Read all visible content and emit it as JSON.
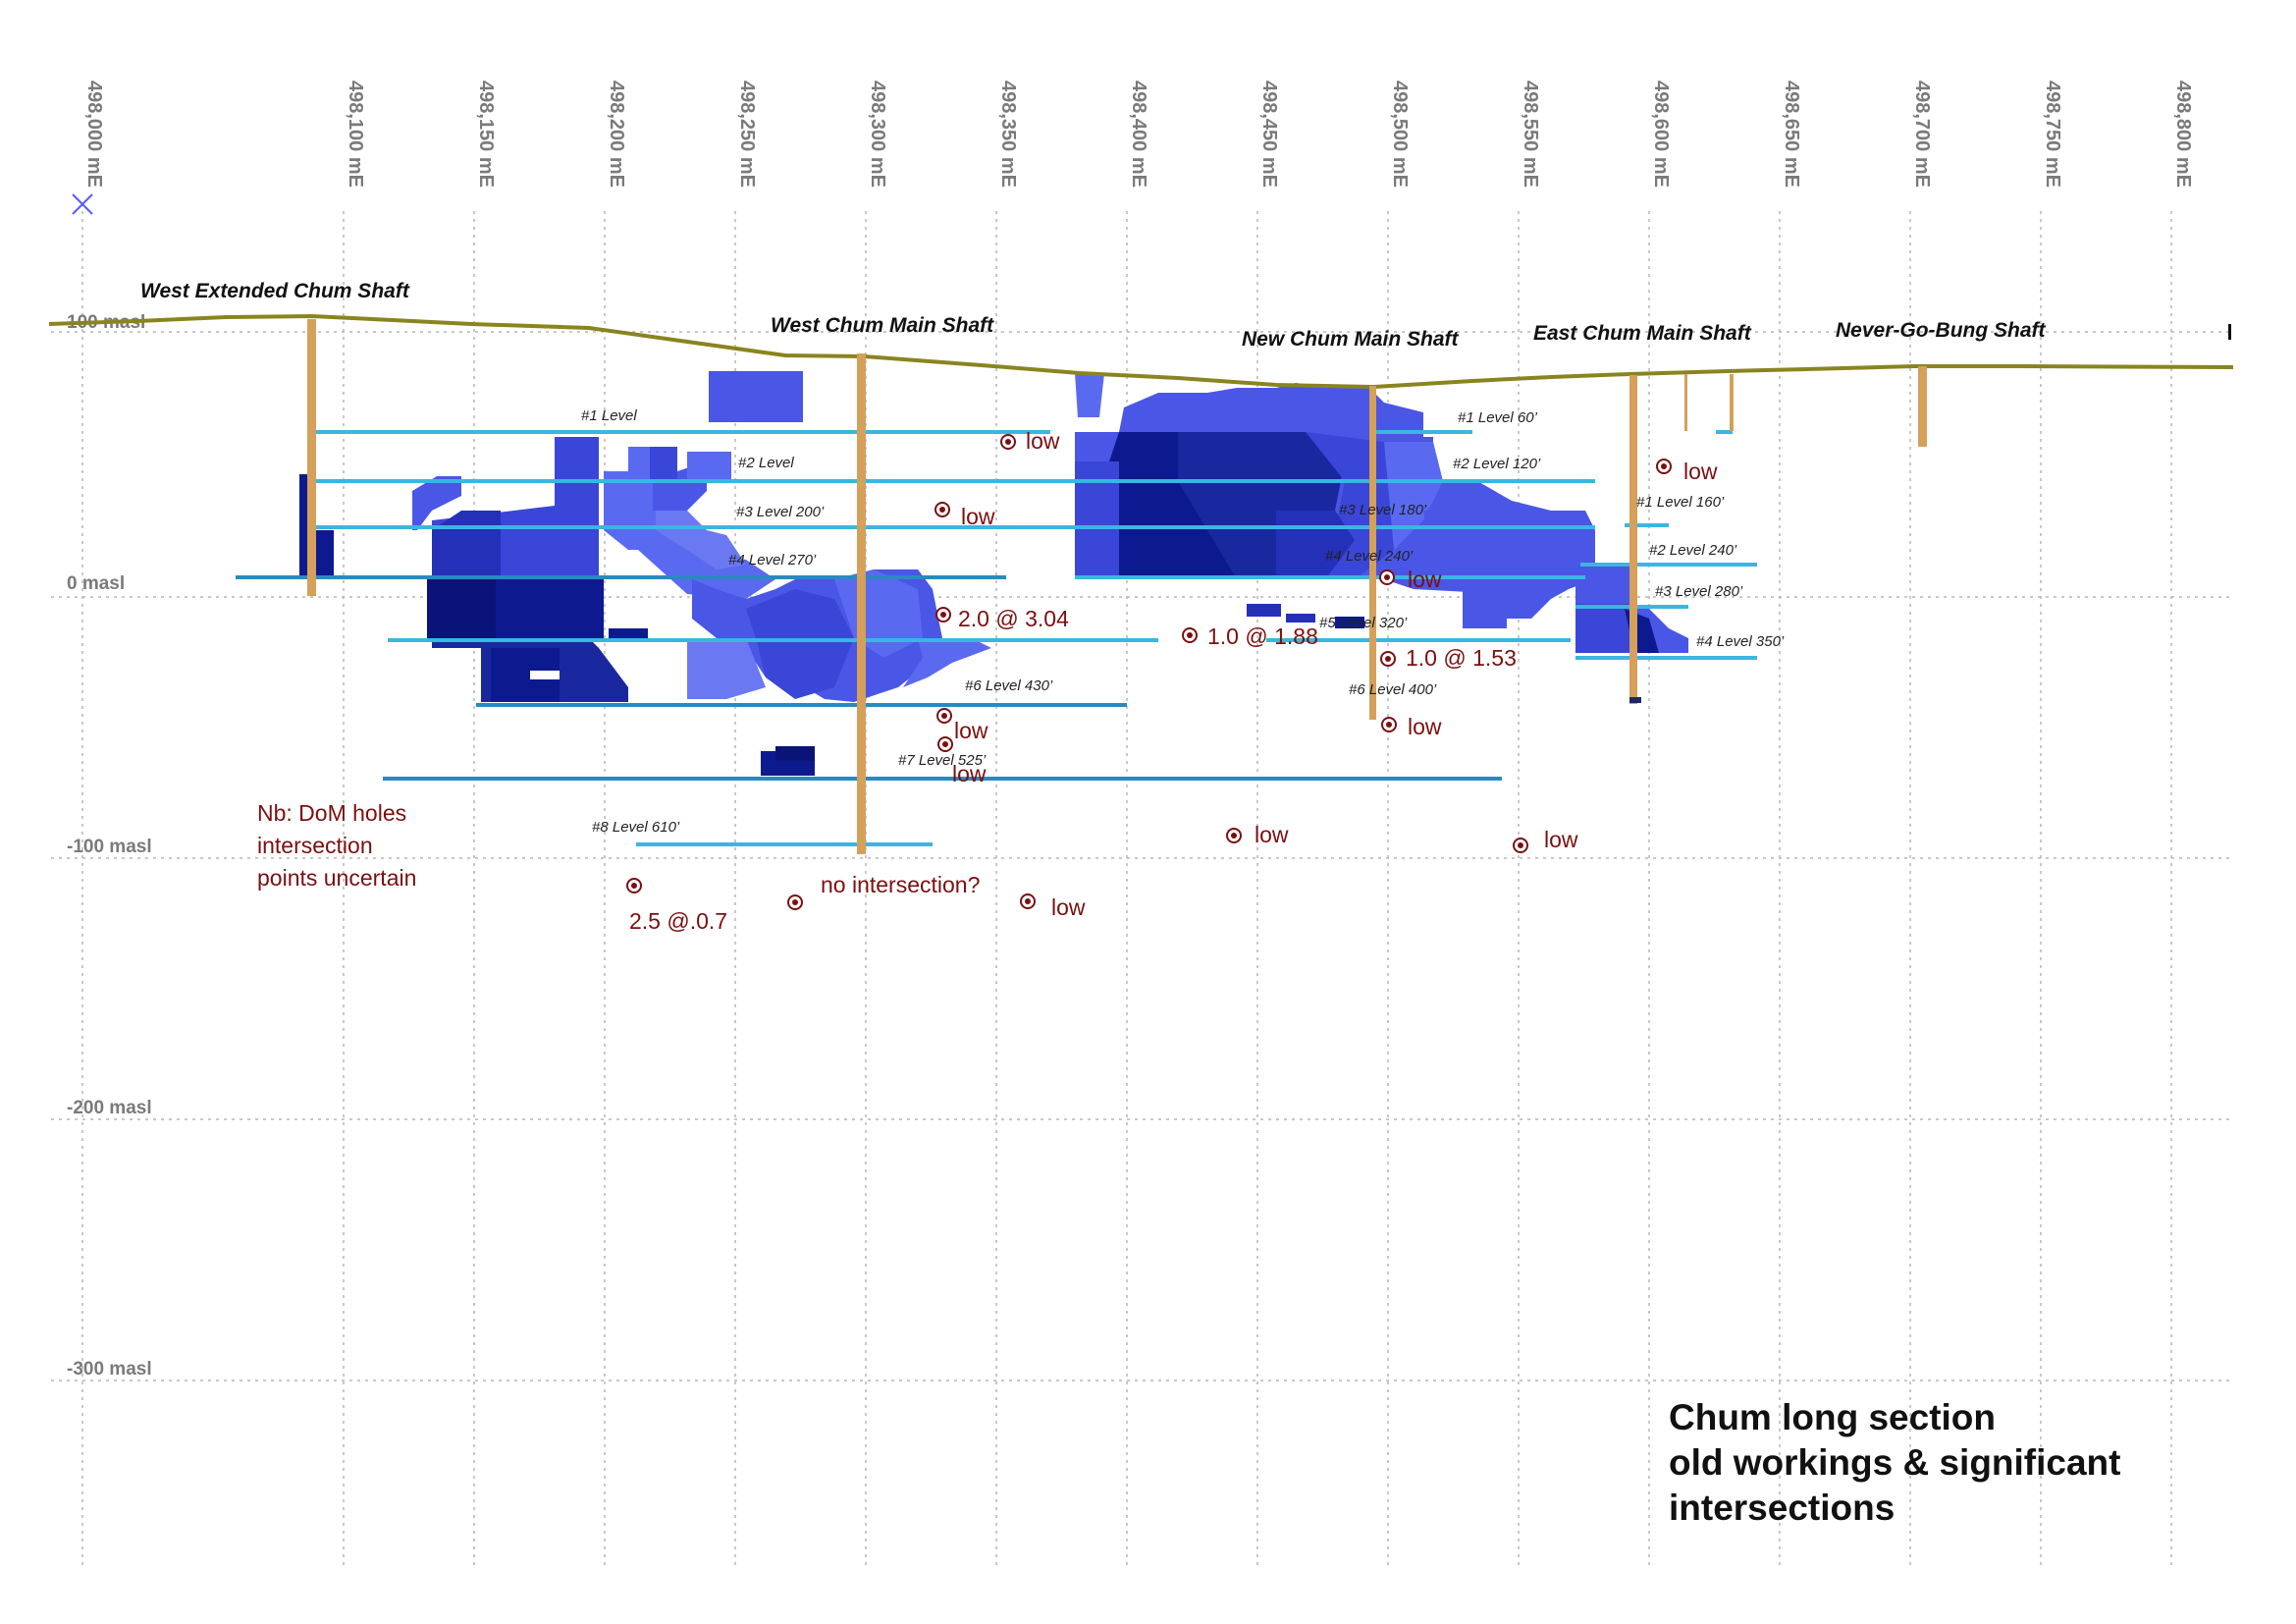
{
  "eastings": [
    "498,000 mE",
    "498,100 mE",
    "498,150 mE",
    "498,200 mE",
    "498,250 mE",
    "498,300 mE",
    "498,350 mE",
    "498,400 mE",
    "498,450 mE",
    "498,500 mE",
    "498,550 mE",
    "498,600 mE",
    "498,650 mE",
    "498,700 mE",
    "498,750 mE",
    "498,800 mE"
  ],
  "elevations": [
    "100 masl",
    "0 masl",
    "-100 masl",
    "-200 masl",
    "-300 masl"
  ],
  "shafts": [
    "West Extended Chum Shaft",
    "West Chum Main Shaft",
    "New Chum Main Shaft",
    "East Chum Main Shaft",
    "Never-Go-Bung Shaft"
  ],
  "levels": [
    "#1 Level",
    "#2 Level",
    "#3 Level 200’",
    "#4 Level 270’",
    "#6 Level 430’",
    "#7 Level 525’",
    "#8 Level 610’",
    "#1 Level 60’",
    "#2 Level 120’",
    "#3 Level 180’",
    "#4 Level 240’",
    "#5 Level 320’",
    "#6 Level 400’",
    "#1 Level 160’",
    "#2 Level 240’",
    "#3 Level 280’",
    "#4 Level 350’"
  ],
  "intersections": [
    "low",
    "low",
    "2.0 @ 3.04",
    "low",
    "low",
    "1.0 @ 1.88",
    "low",
    "1.0 @ 1.53",
    "low",
    "low",
    "low",
    "low",
    "2.5 @.0.7",
    "no intersection?",
    "low"
  ],
  "note": {
    "line1": "Nb:  DoM holes",
    "line2": "intersection",
    "line3": "points uncertain"
  },
  "title": {
    "line1": "Chum long section",
    "line2": "old workings & significant",
    "line3": "intersections"
  },
  "colors": {
    "grid": "#b5b5b5",
    "surface": "#8a8420",
    "shaft": "#d4a05a",
    "level_line": "#3ab6e0",
    "stope_dark": "#0d1a8f",
    "stope_mid": "#3a46d8",
    "stope_light": "#5a6af0",
    "annotation": "#7a1010"
  }
}
